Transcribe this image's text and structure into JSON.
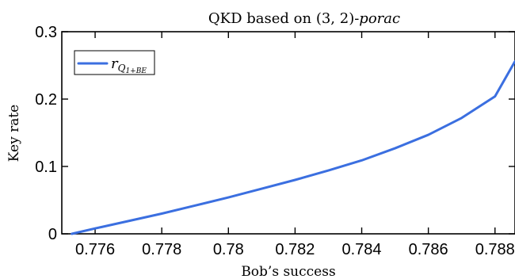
{
  "chart_data": {
    "type": "line",
    "title": {
      "prefix": "QKD based on (3, 2)-",
      "italic": "porac"
    },
    "xlabel": "Bob’s success",
    "ylabel": "Key rate",
    "xlim": [
      0.775,
      0.7886
    ],
    "ylim": [
      0,
      0.3
    ],
    "xticks": [
      0.776,
      0.778,
      0.78,
      0.782,
      0.784,
      0.786,
      0.788
    ],
    "xtick_labels": [
      "0.776",
      "0.778",
      "0.78",
      "0.782",
      "0.784",
      "0.786",
      "0.788"
    ],
    "yticks": [
      0,
      0.1,
      0.2,
      0.3
    ],
    "ytick_labels": [
      "0",
      "0.1",
      "0.2",
      "0.3"
    ],
    "grid": false,
    "legend": {
      "position": "top-left"
    },
    "series": [
      {
        "name": "r_{Q_{1+BE}}",
        "legend_main": "r",
        "legend_sub_main": "Q",
        "legend_sub_small": "1+BE",
        "color": "#3b6fe0",
        "x": [
          0.7753,
          0.776,
          0.777,
          0.778,
          0.779,
          0.78,
          0.781,
          0.782,
          0.783,
          0.784,
          0.785,
          0.786,
          0.787,
          0.788,
          0.7886
        ],
        "y": [
          0.0,
          0.008,
          0.019,
          0.03,
          0.042,
          0.054,
          0.067,
          0.08,
          0.094,
          0.109,
          0.127,
          0.147,
          0.172,
          0.204,
          0.256
        ]
      }
    ]
  }
}
